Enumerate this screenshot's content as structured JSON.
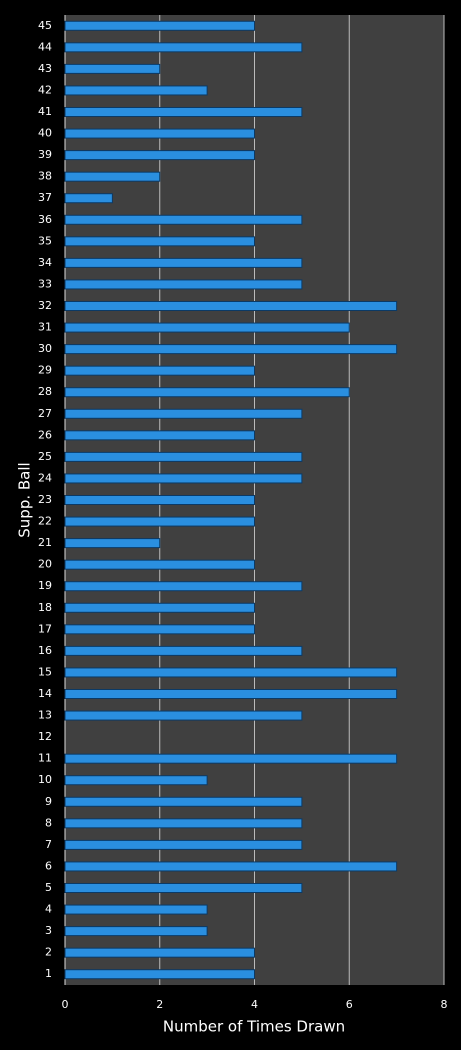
{
  "chart_data": {
    "type": "bar",
    "orientation": "horizontal",
    "x_label": "Number of Times Drawn",
    "y_label": "Supp. Ball",
    "categories": [
      "1",
      "2",
      "3",
      "4",
      "5",
      "6",
      "7",
      "8",
      "9",
      "10",
      "11",
      "12",
      "13",
      "14",
      "15",
      "16",
      "17",
      "18",
      "19",
      "20",
      "21",
      "22",
      "23",
      "24",
      "25",
      "26",
      "27",
      "28",
      "29",
      "30",
      "31",
      "32",
      "33",
      "34",
      "35",
      "36",
      "37",
      "38",
      "39",
      "40",
      "41",
      "42",
      "43",
      "44",
      "45"
    ],
    "values": [
      4,
      4,
      3,
      3,
      5,
      7,
      5,
      5,
      5,
      3,
      7,
      0,
      5,
      7,
      7,
      5,
      4,
      4,
      5,
      4,
      2,
      4,
      4,
      5,
      5,
      4,
      5,
      6,
      4,
      7,
      6,
      7,
      5,
      5,
      4,
      5,
      1,
      2,
      4,
      4,
      5,
      3,
      2,
      5,
      4
    ],
    "color": "#2a8fe0",
    "xlim": [
      0,
      8
    ],
    "xticks": [
      0,
      2,
      4,
      6,
      8
    ],
    "grid": true
  }
}
